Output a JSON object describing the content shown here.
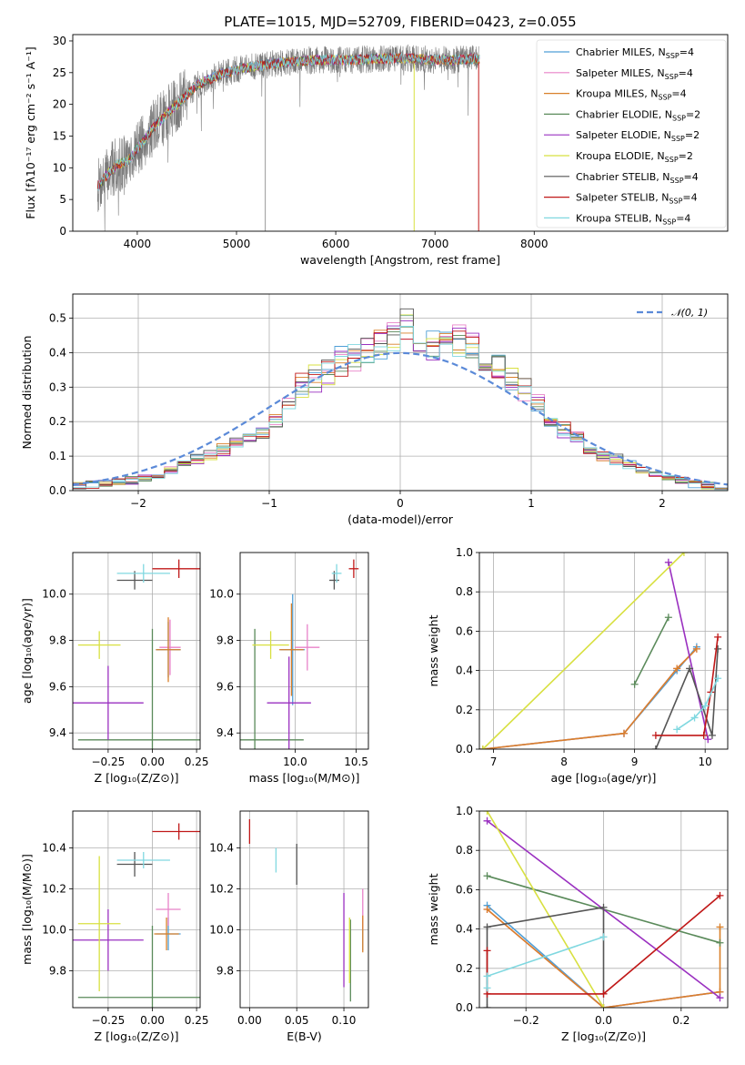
{
  "title": "PLATE=1015, MJD=52709, FIBERID=0423, z=0.055",
  "colors": {
    "Chabrier MILES": "#4f9fd6",
    "Salpeter MILES": "#e882c8",
    "Kroupa MILES": "#d9802a",
    "Chabrier ELODIE": "#5a8a5a",
    "Salpeter ELODIE": "#9a30c0",
    "Kroupa ELODIE": "#d8e040",
    "Chabrier STELIB": "#555555",
    "Salpeter STELIB": "#c01818",
    "Kroupa STELIB": "#80d8e0",
    "normal_curve": "#5b8ad8"
  },
  "chart_data": [
    {
      "id": "spectrum",
      "type": "line",
      "title": "PLATE=1015, MJD=52709, FIBERID=0423, z=0.055",
      "xlabel": "wavelength [Angstrom, rest frame]",
      "ylabel": "Flux [fλ10⁻¹⁷ erg cm⁻² s⁻¹ A⁻¹]",
      "xlim": [
        3350,
        9950
      ],
      "ylim": [
        0,
        31
      ],
      "xticks": [
        "4000",
        "5000",
        "6000",
        "7000",
        "8000"
      ],
      "yticks": [
        "0",
        "5",
        "10",
        "15",
        "20",
        "25",
        "30"
      ],
      "grid": false,
      "legend_position": "top-right",
      "legend": [
        "Chabrier MILES, N_SSP=4",
        "Salpeter MILES, N_SSP=4",
        "Kroupa MILES, N_SSP=4",
        "Chabrier ELODIE, N_SSP=2",
        "Salpeter ELODIE, N_SSP=2",
        "Kroupa ELODIE, N_SSP=2",
        "Chabrier STELIB, N_SSP=4",
        "Salpeter STELIB, N_SSP=4",
        "Kroupa STELIB, N_SSP=4"
      ],
      "continuum": {
        "x": [
          3600,
          3700,
          3800,
          3900,
          4000,
          4100,
          4200,
          4300,
          4400,
          4500,
          4600,
          4800,
          5000,
          5200,
          5400,
          5600,
          5800,
          6000,
          6200,
          6400,
          6600,
          6800,
          7000,
          7200,
          7400,
          7600,
          7800,
          8000,
          8200,
          8500,
          9000,
          9500
        ],
        "y": [
          7,
          9,
          10.5,
          11,
          13,
          15,
          17,
          18.5,
          20,
          21.5,
          23,
          24.5,
          25.5,
          26,
          26.5,
          26.8,
          27,
          27,
          27,
          27.2,
          27.3,
          27.2,
          27,
          27,
          27.2,
          27.2,
          27.3,
          27.3,
          27.2,
          27.2,
          27.1,
          27
        ]
      },
      "data_range": [
        3600,
        7440
      ],
      "model_range": [
        3600,
        7450
      ]
    },
    {
      "id": "residuals",
      "type": "histogram",
      "xlabel": "(data-model)/error",
      "ylabel": "Normed distribution",
      "xlim": [
        -2.5,
        2.5
      ],
      "ylim": [
        0,
        0.57
      ],
      "xticks": [
        "−2",
        "−1",
        "0",
        "1",
        "2"
      ],
      "yticks": [
        "0.0",
        "0.1",
        "0.2",
        "0.3",
        "0.4",
        "0.5"
      ],
      "grid": true,
      "legend": [
        "𝒩(0, 1)"
      ],
      "legend_position": "top-right",
      "bin_width": 0.1,
      "bins_start": -2.5,
      "reference_hist": [
        0.015,
        0.018,
        0.02,
        0.025,
        0.03,
        0.035,
        0.045,
        0.06,
        0.07,
        0.09,
        0.1,
        0.12,
        0.14,
        0.15,
        0.17,
        0.2,
        0.27,
        0.3,
        0.33,
        0.35,
        0.37,
        0.39,
        0.4,
        0.42,
        0.45,
        0.48,
        0.44,
        0.42,
        0.41,
        0.43,
        0.42,
        0.4,
        0.36,
        0.32,
        0.3,
        0.25,
        0.2,
        0.18,
        0.15,
        0.12,
        0.1,
        0.09,
        0.07,
        0.06,
        0.05,
        0.04,
        0.03,
        0.02,
        0.015,
        0.01
      ]
    },
    {
      "id": "age_vs_Z",
      "type": "scatter",
      "xlabel": "Z [log₁₀(Z/Z⊙)]",
      "ylabel": "age  [log₁₀(age/yr)]",
      "xlim": [
        -0.45,
        0.27
      ],
      "ylim": [
        9.33,
        10.18
      ],
      "xticks": [
        "−0.25",
        "0.00",
        "0.25"
      ],
      "yticks": [
        "9.4",
        "9.6",
        "9.8",
        "10.0"
      ],
      "grid": true,
      "points": [
        {
          "model": "Chabrier MILES",
          "x": 0.09,
          "y": 9.76,
          "ex": 0.07,
          "ey": 0.12
        },
        {
          "model": "Salpeter MILES",
          "x": 0.1,
          "y": 9.77,
          "ex": 0.06,
          "ey": 0.12
        },
        {
          "model": "Kroupa MILES",
          "x": 0.09,
          "y": 9.76,
          "ex": 0.07,
          "ey": 0.14
        },
        {
          "model": "Chabrier ELODIE",
          "x": 0.0,
          "y": 9.37,
          "ex": 0.42,
          "ey": 0.48
        },
        {
          "model": "Salpeter ELODIE",
          "x": -0.25,
          "y": 9.53,
          "ex": 0.2,
          "ey": 0.16
        },
        {
          "model": "Kroupa ELODIE",
          "x": -0.3,
          "y": 9.78,
          "ex": 0.12,
          "ey": 0.06
        },
        {
          "model": "Chabrier STELIB",
          "x": -0.1,
          "y": 10.06,
          "ex": 0.1,
          "ey": 0.04
        },
        {
          "model": "Salpeter STELIB",
          "x": 0.15,
          "y": 10.11,
          "ex": 0.15,
          "ey": 0.04
        },
        {
          "model": "Kroupa STELIB",
          "x": -0.05,
          "y": 10.09,
          "ex": 0.15,
          "ey": 0.04
        }
      ]
    },
    {
      "id": "age_vs_mass",
      "type": "scatter",
      "xlabel": "mass [log₁₀(M/M⊙)]",
      "ylabel": "",
      "xlim": [
        9.55,
        10.6
      ],
      "ylim": [
        9.33,
        10.18
      ],
      "xticks": [
        "10.0",
        "10.5"
      ],
      "yticks": [
        "9.4",
        "9.6",
        "9.8",
        "10.0"
      ],
      "grid": true,
      "points": [
        {
          "model": "Chabrier MILES",
          "x": 9.98,
          "y": 9.76,
          "ex": 0.1,
          "ey": 0.24
        },
        {
          "model": "Salpeter MILES",
          "x": 10.1,
          "y": 9.77,
          "ex": 0.1,
          "ey": 0.1
        },
        {
          "model": "Kroupa MILES",
          "x": 9.97,
          "y": 9.76,
          "ex": 0.1,
          "ey": 0.2
        },
        {
          "model": "Chabrier ELODIE",
          "x": 9.67,
          "y": 9.37,
          "ex": 0.4,
          "ey": 0.48
        },
        {
          "model": "Salpeter ELODIE",
          "x": 9.95,
          "y": 9.53,
          "ex": 0.18,
          "ey": 0.2
        },
        {
          "model": "Kroupa ELODIE",
          "x": 9.8,
          "y": 9.78,
          "ex": 0.15,
          "ey": 0.06
        },
        {
          "model": "Chabrier STELIB",
          "x": 10.32,
          "y": 10.06,
          "ex": 0.04,
          "ey": 0.04
        },
        {
          "model": "Salpeter STELIB",
          "x": 10.48,
          "y": 10.11,
          "ex": 0.04,
          "ey": 0.04
        },
        {
          "model": "Kroupa STELIB",
          "x": 10.34,
          "y": 10.09,
          "ex": 0.04,
          "ey": 0.04
        }
      ]
    },
    {
      "id": "weight_vs_age",
      "type": "line",
      "xlabel": "age  [log₁₀(age/yr)]",
      "ylabel": "mass weight",
      "xlim": [
        6.8,
        10.32
      ],
      "ylim": [
        0,
        1
      ],
      "xticks": [
        "7",
        "8",
        "9",
        "10"
      ],
      "yticks": [
        "0.0",
        "0.2",
        "0.4",
        "0.6",
        "0.8",
        "1.0"
      ],
      "grid": true,
      "series": [
        {
          "model": "Chabrier MILES",
          "x": [
            6.85,
            8.85,
            9.6,
            9.88
          ],
          "y": [
            0.0,
            0.08,
            0.4,
            0.52
          ]
        },
        {
          "model": "Salpeter MILES",
          "x": [
            6.85,
            8.85,
            9.6,
            9.88
          ],
          "y": [
            0.0,
            0.08,
            0.41,
            0.51
          ]
        },
        {
          "model": "Kroupa MILES",
          "x": [
            6.85,
            8.85,
            9.6,
            9.88
          ],
          "y": [
            0.0,
            0.08,
            0.41,
            0.51
          ]
        },
        {
          "model": "Chabrier ELODIE",
          "x": [
            9.0,
            9.48
          ],
          "y": [
            0.33,
            0.67
          ]
        },
        {
          "model": "Salpeter ELODIE",
          "x": [
            9.48,
            10.04
          ],
          "y": [
            0.95,
            0.05
          ]
        },
        {
          "model": "Kroupa ELODIE",
          "x": [
            6.85,
            9.7
          ],
          "y": [
            0.0,
            1.0
          ]
        },
        {
          "model": "Chabrier STELIB",
          "x": [
            9.3,
            9.78,
            10.1,
            10.18
          ],
          "y": [
            0.0,
            0.41,
            0.07,
            0.51
          ]
        },
        {
          "model": "Salpeter STELIB",
          "x": [
            9.3,
            9.98,
            10.08,
            10.18
          ],
          "y": [
            0.07,
            0.07,
            0.29,
            0.57
          ]
        },
        {
          "model": "Kroupa STELIB",
          "x": [
            9.6,
            9.85,
            10.0,
            10.18
          ],
          "y": [
            0.1,
            0.16,
            0.22,
            0.36
          ]
        }
      ]
    },
    {
      "id": "mass_vs_Z",
      "type": "scatter",
      "xlabel": "Z [log₁₀(Z/Z⊙)]",
      "ylabel": "mass [log₁₀(M/M⊙)]",
      "xlim": [
        -0.45,
        0.27
      ],
      "ylim": [
        9.62,
        10.58
      ],
      "xticks": [
        "−0.25",
        "0.00",
        "0.25"
      ],
      "yticks": [
        "9.8",
        "10.0",
        "10.2",
        "10.4"
      ],
      "grid": true,
      "points": [
        {
          "model": "Chabrier MILES",
          "x": 0.09,
          "y": 9.98,
          "ex": 0.07,
          "ey": 0.08
        },
        {
          "model": "Salpeter MILES",
          "x": 0.09,
          "y": 10.1,
          "ex": 0.07,
          "ey": 0.08
        },
        {
          "model": "Kroupa MILES",
          "x": 0.08,
          "y": 9.98,
          "ex": 0.07,
          "ey": 0.08
        },
        {
          "model": "Chabrier ELODIE",
          "x": 0.0,
          "y": 9.67,
          "ex": 0.42,
          "ey": 0.35
        },
        {
          "model": "Salpeter ELODIE",
          "x": -0.25,
          "y": 9.95,
          "ex": 0.2,
          "ey": 0.15
        },
        {
          "model": "Kroupa ELODIE",
          "x": -0.3,
          "y": 10.03,
          "ex": 0.12,
          "ey": 0.33
        },
        {
          "model": "Chabrier STELIB",
          "x": -0.1,
          "y": 10.32,
          "ex": 0.1,
          "ey": 0.06
        },
        {
          "model": "Salpeter STELIB",
          "x": 0.15,
          "y": 10.48,
          "ex": 0.15,
          "ey": 0.04
        },
        {
          "model": "Kroupa STELIB",
          "x": -0.05,
          "y": 10.34,
          "ex": 0.15,
          "ey": 0.04
        }
      ]
    },
    {
      "id": "mass_vs_EBV",
      "type": "scatter",
      "xlabel": "E(B-V)",
      "ylabel": "",
      "xlim": [
        -0.01,
        0.126
      ],
      "ylim": [
        9.62,
        10.58
      ],
      "xticks": [
        "0.00",
        "0.05",
        "0.10"
      ],
      "yticks": [
        "9.8",
        "10.0",
        "10.2",
        "10.4"
      ],
      "grid": true,
      "points": [
        {
          "model": "Chabrier MILES",
          "x": 0.12,
          "y": 9.98,
          "ey": 0.08
        },
        {
          "model": "Salpeter MILES",
          "x": 0.12,
          "y": 10.1,
          "ey": 0.1
        },
        {
          "model": "Kroupa MILES",
          "x": 0.12,
          "y": 9.98,
          "ey": 0.09
        },
        {
          "model": "Chabrier ELODIE",
          "x": 0.107,
          "y": 9.85,
          "ey": 0.2
        },
        {
          "model": "Salpeter ELODIE",
          "x": 0.1,
          "y": 9.95,
          "ey": 0.23
        },
        {
          "model": "Kroupa ELODIE",
          "x": 0.106,
          "y": 9.9,
          "ey": 0.16
        },
        {
          "model": "Chabrier STELIB",
          "x": 0.05,
          "y": 10.32,
          "ey": 0.1
        },
        {
          "model": "Salpeter STELIB",
          "x": 0.0,
          "y": 10.48,
          "ey": 0.06
        },
        {
          "model": "Kroupa STELIB",
          "x": 0.028,
          "y": 10.34,
          "ey": 0.06
        }
      ]
    },
    {
      "id": "weight_vs_Z",
      "type": "line",
      "xlabel": "Z [log₁₀(Z/Z⊙)]",
      "ylabel": "mass weight",
      "xlim": [
        -0.32,
        0.32
      ],
      "ylim": [
        0,
        1
      ],
      "xticks": [
        "−0.2",
        "0.0",
        "0.2"
      ],
      "yticks": [
        "0.0",
        "0.2",
        "0.4",
        "0.6",
        "0.8",
        "1.0"
      ],
      "grid": true,
      "series": [
        {
          "model": "Chabrier MILES",
          "x": [
            -0.3,
            0.0,
            0.3
          ],
          "y": [
            0.52,
            0.0,
            0.08
          ]
        },
        {
          "model": "Salpeter MILES",
          "x": [
            -0.3,
            0.0,
            0.3
          ],
          "y": [
            0.5,
            0.0,
            0.08
          ]
        },
        {
          "model": "Kroupa MILES",
          "x": [
            -0.3,
            0.0,
            0.3,
            0.3
          ],
          "y": [
            0.5,
            0.0,
            0.08,
            0.41
          ]
        },
        {
          "model": "Chabrier ELODIE",
          "x": [
            -0.3,
            0.3
          ],
          "y": [
            0.67,
            0.33
          ]
        },
        {
          "model": "Salpeter ELODIE",
          "x": [
            -0.3,
            0.3
          ],
          "y": [
            0.95,
            0.05
          ]
        },
        {
          "model": "Kroupa ELODIE",
          "x": [
            -0.3,
            0.0
          ],
          "y": [
            1.0,
            0.0
          ]
        },
        {
          "model": "Chabrier STELIB",
          "x": [
            -0.3,
            -0.3,
            0.0,
            0.0
          ],
          "y": [
            0.0,
            0.41,
            0.51,
            0.07
          ]
        },
        {
          "model": "Salpeter STELIB",
          "x": [
            -0.3,
            -0.3,
            0.0,
            0.3
          ],
          "y": [
            0.29,
            0.07,
            0.07,
            0.57
          ]
        },
        {
          "model": "Kroupa STELIB",
          "x": [
            -0.3,
            -0.3,
            0.0
          ],
          "y": [
            0.1,
            0.16,
            0.36
          ]
        }
      ]
    }
  ]
}
